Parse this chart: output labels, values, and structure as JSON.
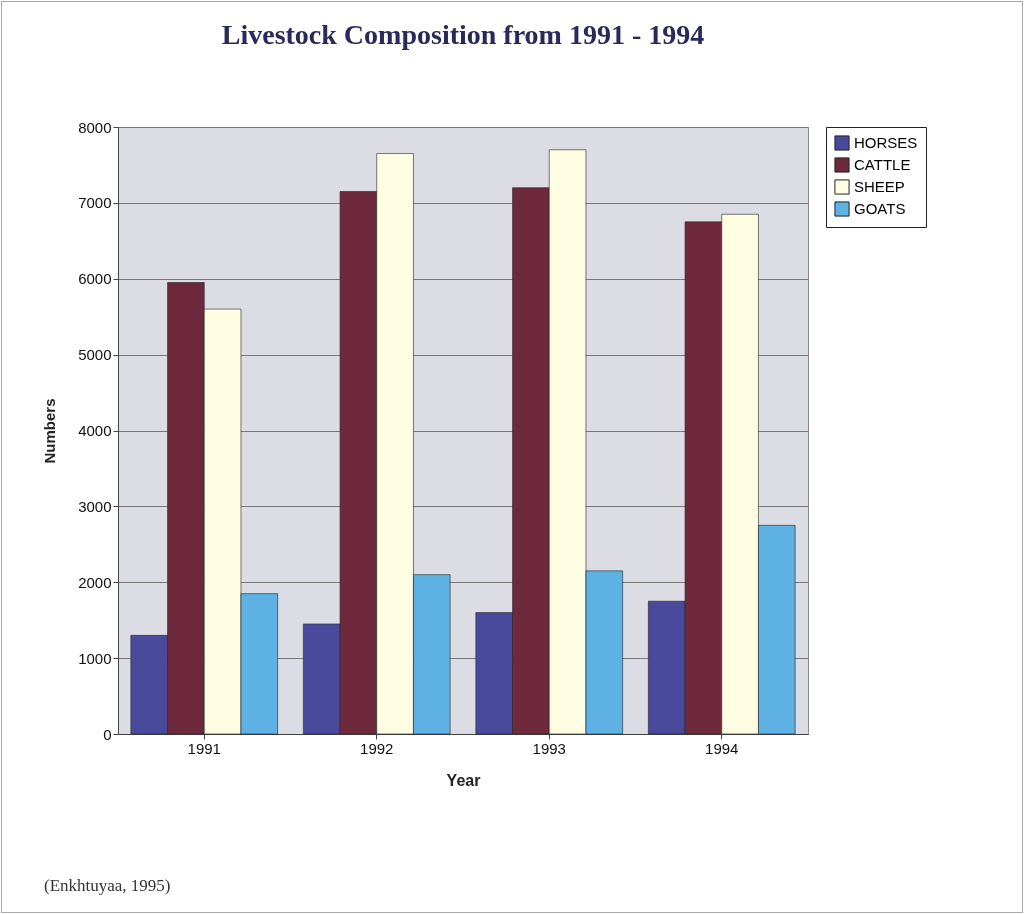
{
  "chart_data": {
    "type": "bar",
    "title": "Livestock Composition from 1991 - 1994",
    "xlabel": "Year",
    "ylabel": "Numbers",
    "categories": [
      "1991",
      "1992",
      "1993",
      "1994"
    ],
    "series": [
      {
        "name": "HORSES",
        "color": "#4a4a9c",
        "values": [
          1300,
          1450,
          1600,
          1750
        ]
      },
      {
        "name": "CATTLE",
        "color": "#6e2a3c",
        "values": [
          5950,
          7150,
          7200,
          6750
        ]
      },
      {
        "name": "SHEEP",
        "color": "#fffde2",
        "values": [
          5600,
          7650,
          7700,
          6850
        ]
      },
      {
        "name": "GOATS",
        "color": "#5db2e3",
        "values": [
          1850,
          2100,
          2150,
          2750
        ]
      }
    ],
    "ylim": [
      0,
      8000
    ],
    "yticks": [
      0,
      1000,
      2000,
      3000,
      4000,
      5000,
      6000,
      7000,
      8000
    ],
    "grid": "y",
    "legend": "right",
    "annotations": [
      "(Enkhtuyaa, 1995)"
    ]
  }
}
